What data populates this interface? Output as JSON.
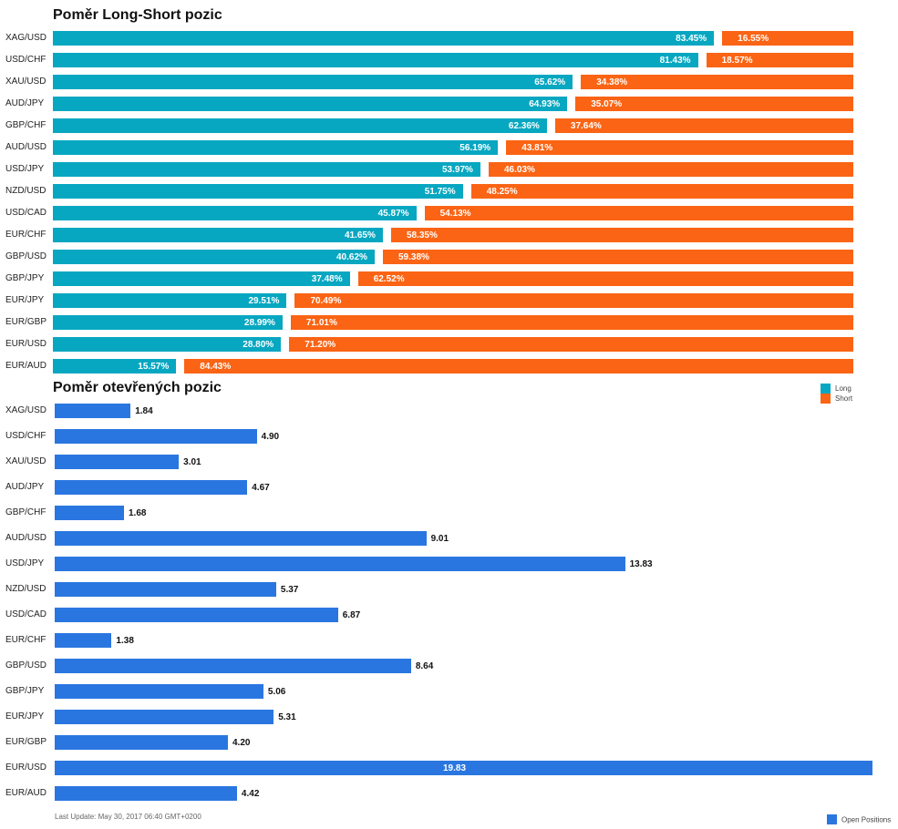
{
  "colors": {
    "long": "#08a7c1",
    "short": "#fa6414",
    "open": "#2a76e0"
  },
  "chart_data": [
    {
      "type": "bar",
      "orientation": "horizontal",
      "stacked": "percent",
      "title": "Poměr Long-Short pozic",
      "categories": [
        "XAG/USD",
        "USD/CHF",
        "XAU/USD",
        "AUD/JPY",
        "GBP/CHF",
        "AUD/USD",
        "USD/JPY",
        "NZD/USD",
        "USD/CAD",
        "EUR/CHF",
        "GBP/USD",
        "GBP/JPY",
        "EUR/JPY",
        "EUR/GBP",
        "EUR/USD",
        "EUR/AUD"
      ],
      "series": [
        {
          "name": "Long",
          "color": "#08a7c1",
          "values": [
            83.45,
            81.43,
            65.62,
            64.93,
            62.36,
            56.19,
            53.97,
            51.75,
            45.87,
            41.65,
            40.62,
            37.48,
            29.51,
            28.99,
            28.8,
            15.57
          ],
          "labels": [
            "83.45%",
            "81.43%",
            "65.62%",
            "64.93%",
            "62.36%",
            "56.19%",
            "53.97%",
            "51.75%",
            "45.87%",
            "41.65%",
            "40.62%",
            "37.48%",
            "29.51%",
            "28.99%",
            "28.80%",
            "15.57%"
          ]
        },
        {
          "name": "Short",
          "color": "#fa6414",
          "values": [
            16.55,
            18.57,
            34.38,
            35.07,
            37.64,
            43.81,
            46.03,
            48.25,
            54.13,
            58.35,
            59.38,
            62.52,
            70.49,
            71.01,
            71.2,
            84.43
          ],
          "labels": [
            "16.55%",
            "18.57%",
            "34.38%",
            "35.07%",
            "37.64%",
            "43.81%",
            "46.03%",
            "48.25%",
            "54.13%",
            "58.35%",
            "59.38%",
            "62.52%",
            "70.49%",
            "71.01%",
            "71.20%",
            "84.43%"
          ]
        }
      ],
      "ylim": [
        0,
        100
      ],
      "grid": false,
      "legend": "right"
    },
    {
      "type": "bar",
      "orientation": "horizontal",
      "title": "Poměr otevřených pozic",
      "categories": [
        "XAG/USD",
        "USD/CHF",
        "XAU/USD",
        "AUD/JPY",
        "GBP/CHF",
        "AUD/USD",
        "USD/JPY",
        "NZD/USD",
        "USD/CAD",
        "EUR/CHF",
        "GBP/USD",
        "GBP/JPY",
        "EUR/JPY",
        "EUR/GBP",
        "EUR/USD",
        "EUR/AUD"
      ],
      "series": [
        {
          "name": "Open Positions",
          "color": "#2a76e0",
          "values": [
            1.84,
            4.9,
            3.01,
            4.67,
            1.68,
            9.01,
            13.83,
            5.37,
            6.87,
            1.38,
            8.64,
            5.06,
            5.31,
            4.2,
            19.83,
            4.42
          ],
          "labels": [
            "1.84",
            "4.90",
            "3.01",
            "4.67",
            "1.68",
            "9.01",
            "13.83",
            "5.37",
            "6.87",
            "1.38",
            "8.64",
            "5.06",
            "5.31",
            "4.20",
            "19.83",
            "4.42"
          ]
        }
      ],
      "ylim": [
        0,
        19.83
      ],
      "grid": false,
      "legend": "bottom-right"
    }
  ],
  "footnote": "Last Update: May 30, 2017 06:40 GMT+0200"
}
